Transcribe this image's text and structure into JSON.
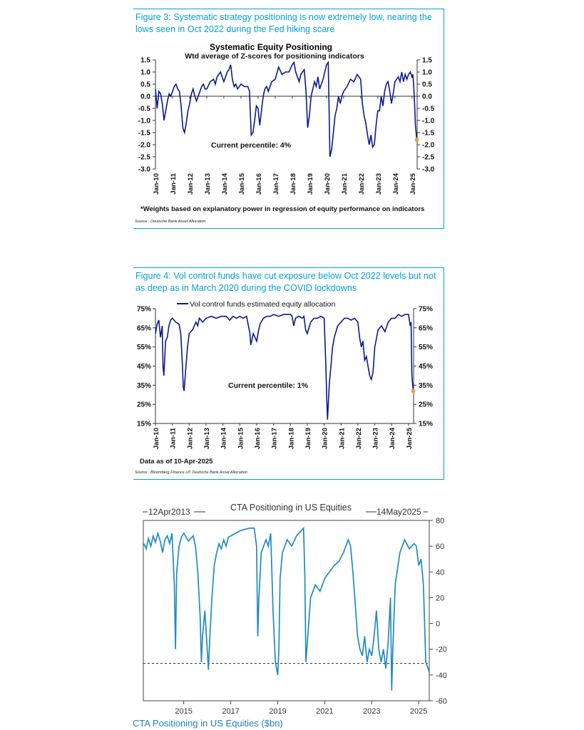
{
  "figure1": {
    "caption": "Figure 3: Systematic strategy positioning is now extremely low, nearing the lows seen in Oct 2022 during the Fed hiking scare",
    "footnote": "*Weights based on explanatory power in regression of equity performance on indicators",
    "source": "Source : Deutsche Bank Asset Allocation"
  },
  "figure2": {
    "caption": "Figure 4: Vol control funds have cut exposure below Oct 2022 levels but not as deep as in March 2020 during the COVID lockdowns",
    "source": "Source : Bloomberg Finance LP, Deutsche Bank Asset Allocation"
  },
  "chart_data": [
    {
      "type": "line",
      "title": "Systematic Equity Positioning",
      "subtitle": "Wtd average of Z-scores for positioning indicators",
      "annotation": "Current percentile: 4%",
      "ylim": [
        -3.0,
        1.5
      ],
      "yticks": [
        "1.5",
        "1.0",
        "0.5",
        "0.0",
        "-0.5",
        "-1.0",
        "-1.5",
        "-2.0",
        "-2.5",
        "-3.0"
      ],
      "xticks": [
        "Jan-10",
        "Jan-11",
        "Jan-12",
        "Jan-13",
        "Jan-14",
        "Jan-15",
        "Jan-16",
        "Jan-17",
        "Jan-18",
        "Jan-19",
        "Jan-20",
        "Jan-21",
        "Jan-22",
        "Jan-23",
        "Jan-24",
        "Jan-25"
      ],
      "x_range": [
        2010.0,
        2025.3
      ],
      "line_color": "#0b1a8a",
      "marker_color": "#f39a4a",
      "current_point": {
        "x": 2025.28,
        "y": -1.8
      },
      "series": [
        {
          "x": [
            2010.0,
            2010.1,
            2010.2,
            2010.3,
            2010.4,
            2010.5,
            2010.6,
            2010.7,
            2010.8,
            2010.9,
            2011.0,
            2011.1,
            2011.2,
            2011.3,
            2011.4,
            2011.5,
            2011.6,
            2011.7,
            2011.8,
            2011.9,
            2012.0,
            2012.1,
            2012.2,
            2012.3,
            2012.4,
            2012.5,
            2012.6,
            2012.7,
            2012.8,
            2012.9,
            2013.0,
            2013.2,
            2013.4,
            2013.5,
            2013.6,
            2013.8,
            2014.0,
            2014.1,
            2014.2,
            2014.3,
            2014.4,
            2014.5,
            2014.6,
            2014.7,
            2014.8,
            2014.9,
            2015.0,
            2015.2,
            2015.4,
            2015.5,
            2015.6,
            2015.7,
            2015.8,
            2015.9,
            2016.0,
            2016.1,
            2016.2,
            2016.3,
            2016.4,
            2016.5,
            2016.6,
            2016.8,
            2017.0,
            2017.2,
            2017.4,
            2017.6,
            2017.8,
            2018.0,
            2018.1,
            2018.2,
            2018.3,
            2018.4,
            2018.5,
            2018.6,
            2018.7,
            2018.8,
            2018.9,
            2019.0,
            2019.1,
            2019.2,
            2019.3,
            2019.4,
            2019.5,
            2019.6,
            2019.7,
            2019.8,
            2019.9,
            2020.0,
            2020.1,
            2020.15,
            2020.2,
            2020.3,
            2020.4,
            2020.5,
            2020.6,
            2020.7,
            2020.8,
            2020.9,
            2021.0,
            2021.2,
            2021.4,
            2021.6,
            2021.8,
            2022.0,
            2022.1,
            2022.2,
            2022.3,
            2022.4,
            2022.5,
            2022.6,
            2022.7,
            2022.8,
            2022.9,
            2023.0,
            2023.1,
            2023.2,
            2023.3,
            2023.4,
            2023.5,
            2023.6,
            2023.7,
            2023.8,
            2023.9,
            2024.0,
            2024.1,
            2024.2,
            2024.3,
            2024.4,
            2024.5,
            2024.6,
            2024.7,
            2024.8,
            2024.9,
            2025.0,
            2025.05,
            2025.1,
            2025.15,
            2025.2,
            2025.28
          ],
          "y": [
            0.3,
            -0.5,
            0.2,
            0.1,
            -0.3,
            -1.0,
            -0.6,
            -0.2,
            0.1,
            0.0,
            0.2,
            0.4,
            0.5,
            0.3,
            0.2,
            -0.4,
            -1.3,
            -1.5,
            -1.1,
            -0.6,
            -0.3,
            0.1,
            0.3,
            0.0,
            -0.2,
            0.0,
            0.2,
            0.4,
            0.5,
            0.3,
            0.3,
            0.6,
            0.7,
            0.5,
            0.8,
            1.0,
            0.6,
            0.8,
            1.0,
            1.1,
            1.3,
            0.7,
            0.4,
            0.5,
            0.3,
            0.4,
            0.5,
            0.4,
            0.4,
            0.2,
            -1.6,
            -1.5,
            -1.0,
            -0.4,
            -0.5,
            -1.2,
            -0.6,
            0.0,
            0.3,
            0.4,
            0.2,
            0.6,
            0.7,
            1.2,
            0.9,
            1.0,
            1.0,
            1.3,
            1.4,
            1.0,
            0.8,
            0.6,
            0.9,
            1.0,
            1.1,
            0.2,
            -1.3,
            -0.8,
            0.0,
            0.3,
            0.6,
            0.4,
            0.8,
            0.3,
            0.5,
            0.7,
            1.0,
            1.3,
            1.4,
            -0.5,
            -2.5,
            -2.2,
            -1.5,
            -0.8,
            -0.5,
            0.0,
            -0.3,
            0.0,
            0.2,
            0.4,
            0.7,
            0.6,
            0.9,
            0.7,
            -0.3,
            -0.8,
            -1.1,
            -1.6,
            -2.0,
            -1.6,
            -2.1,
            -2.0,
            -1.2,
            -0.6,
            -0.6,
            0.0,
            -0.4,
            0.2,
            0.5,
            0.6,
            0.2,
            -0.3,
            0.1,
            0.6,
            0.7,
            0.8,
            0.6,
            1.0,
            0.6,
            0.9,
            0.7,
            0.9,
            1.0,
            0.8,
            0.9,
            0.4,
            -0.3,
            -1.2,
            -1.8
          ]
        }
      ]
    },
    {
      "type": "line",
      "legend": "Vol control funds estimated equity allocation",
      "annotation": "Current percentile: 1%",
      "note": "Data as of 10-Apr-2025",
      "ylim": [
        15,
        75
      ],
      "yticks": [
        "75%",
        "65%",
        "55%",
        "45%",
        "35%",
        "25%",
        "15%"
      ],
      "xticks": [
        "Jan-10",
        "Jan-11",
        "Jan-12",
        "Jan-13",
        "Jan-14",
        "Jan-15",
        "Jan-16",
        "Jan-17",
        "Jan-18",
        "Jan-19",
        "Jan-20",
        "Jan-21",
        "Jan-22",
        "Jan-23",
        "Jan-24",
        "Jan-25"
      ],
      "x_range": [
        2010.0,
        2025.3
      ],
      "line_color": "#0b1a8a",
      "marker_color": "#f39a4a",
      "current_point": {
        "x": 2025.28,
        "y": 32
      },
      "series": [
        {
          "x": [
            2010.0,
            2010.1,
            2010.2,
            2010.3,
            2010.4,
            2010.45,
            2010.5,
            2010.6,
            2010.7,
            2010.8,
            2010.9,
            2011.0,
            2011.2,
            2011.4,
            2011.5,
            2011.6,
            2011.65,
            2011.7,
            2011.8,
            2011.9,
            2012.0,
            2012.2,
            2012.4,
            2012.5,
            2012.6,
            2012.8,
            2013.0,
            2013.3,
            2013.6,
            2013.9,
            2014.2,
            2014.4,
            2014.6,
            2014.8,
            2015.0,
            2015.2,
            2015.4,
            2015.6,
            2015.65,
            2015.7,
            2015.8,
            2016.0,
            2016.1,
            2016.2,
            2016.4,
            2016.6,
            2016.8,
            2017.0,
            2017.3,
            2017.6,
            2017.9,
            2018.0,
            2018.1,
            2018.2,
            2018.3,
            2018.5,
            2018.7,
            2018.8,
            2018.9,
            2019.0,
            2019.2,
            2019.4,
            2019.6,
            2019.8,
            2020.0,
            2020.1,
            2020.15,
            2020.2,
            2020.3,
            2020.4,
            2020.5,
            2020.6,
            2020.8,
            2021.0,
            2021.2,
            2021.4,
            2021.6,
            2021.8,
            2022.0,
            2022.1,
            2022.2,
            2022.3,
            2022.4,
            2022.5,
            2022.6,
            2022.7,
            2022.8,
            2022.9,
            2023.0,
            2023.2,
            2023.4,
            2023.6,
            2023.8,
            2024.0,
            2024.2,
            2024.4,
            2024.6,
            2024.8,
            2025.0,
            2025.1,
            2025.15,
            2025.2,
            2025.28
          ],
          "y": [
            62,
            67,
            69,
            60,
            66,
            45,
            40,
            58,
            60,
            66,
            69,
            70,
            68,
            67,
            62,
            45,
            34,
            32,
            44,
            55,
            62,
            64,
            68,
            66,
            70,
            68,
            70,
            71,
            70,
            71,
            71,
            69,
            71,
            70,
            71,
            70,
            71,
            62,
            56,
            58,
            62,
            58,
            63,
            67,
            70,
            71,
            71,
            72,
            71,
            72,
            72,
            72,
            71,
            66,
            70,
            71,
            70,
            71,
            64,
            62,
            68,
            70,
            70,
            71,
            70,
            45,
            28,
            17,
            35,
            45,
            55,
            60,
            66,
            68,
            70,
            70,
            69,
            70,
            68,
            60,
            55,
            58,
            48,
            50,
            45,
            40,
            38,
            42,
            55,
            64,
            66,
            63,
            68,
            70,
            70,
            72,
            71,
            72,
            72,
            66,
            68,
            40,
            32
          ]
        }
      ]
    },
    {
      "type": "line",
      "title": "CTA Positioning in US Equities",
      "xlabel": "CTA Positioning in US Equities ($bn)",
      "date_left": "12Apr2013",
      "date_right": "14May2025",
      "ylim": [
        -60,
        80
      ],
      "yticks": [
        "80",
        "60",
        "40",
        "20",
        "0",
        "-20",
        "-40",
        "-60"
      ],
      "xticks": [
        "2015",
        "2017",
        "2019",
        "2021",
        "2023",
        "2025"
      ],
      "x_range": [
        2013.28,
        2025.45
      ],
      "reference_line": -31,
      "line_color": "#1f8bc2",
      "series": [
        {
          "x": [
            2013.3,
            2013.4,
            2013.5,
            2013.6,
            2013.7,
            2013.8,
            2013.9,
            2014.0,
            2014.1,
            2014.2,
            2014.3,
            2014.4,
            2014.5,
            2014.6,
            2014.65,
            2014.7,
            2014.8,
            2014.9,
            2015.0,
            2015.2,
            2015.4,
            2015.5,
            2015.6,
            2015.7,
            2015.75,
            2015.8,
            2015.9,
            2016.0,
            2016.05,
            2016.1,
            2016.2,
            2016.3,
            2016.4,
            2016.5,
            2016.6,
            2016.7,
            2016.8,
            2016.9,
            2017.0,
            2017.2,
            2017.4,
            2017.6,
            2017.8,
            2018.0,
            2018.1,
            2018.15,
            2018.2,
            2018.3,
            2018.4,
            2018.5,
            2018.6,
            2018.7,
            2018.8,
            2018.9,
            2019.0,
            2019.05,
            2019.1,
            2019.2,
            2019.4,
            2019.6,
            2019.8,
            2020.0,
            2020.1,
            2020.15,
            2020.2,
            2020.3,
            2020.4,
            2020.6,
            2020.8,
            2021.0,
            2021.2,
            2021.4,
            2021.6,
            2021.8,
            2022.0,
            2022.1,
            2022.2,
            2022.3,
            2022.4,
            2022.5,
            2022.6,
            2022.7,
            2022.8,
            2022.9,
            2023.0,
            2023.1,
            2023.2,
            2023.3,
            2023.4,
            2023.5,
            2023.6,
            2023.7,
            2023.8,
            2023.85,
            2023.9,
            2024.0,
            2024.2,
            2024.4,
            2024.6,
            2024.8,
            2024.9,
            2025.0,
            2025.1,
            2025.2,
            2025.3,
            2025.4,
            2025.45
          ],
          "y": [
            62,
            58,
            66,
            60,
            68,
            63,
            70,
            64,
            55,
            65,
            68,
            62,
            70,
            30,
            -20,
            40,
            60,
            67,
            70,
            64,
            68,
            60,
            40,
            5,
            -30,
            -10,
            10,
            -20,
            -36,
            -15,
            20,
            45,
            55,
            62,
            58,
            65,
            60,
            67,
            68,
            70,
            72,
            73,
            74,
            74,
            60,
            -10,
            20,
            55,
            60,
            65,
            60,
            70,
            10,
            -30,
            -40,
            -20,
            35,
            55,
            65,
            60,
            68,
            72,
            74,
            40,
            -30,
            -5,
            20,
            30,
            25,
            35,
            40,
            45,
            48,
            55,
            65,
            60,
            40,
            15,
            -10,
            -20,
            -25,
            -10,
            -30,
            -20,
            -25,
            -10,
            10,
            -20,
            -30,
            -20,
            -35,
            -15,
            20,
            -52,
            -20,
            30,
            55,
            65,
            58,
            62,
            60,
            45,
            50,
            30,
            -30,
            -35,
            -38
          ]
        }
      ]
    }
  ]
}
